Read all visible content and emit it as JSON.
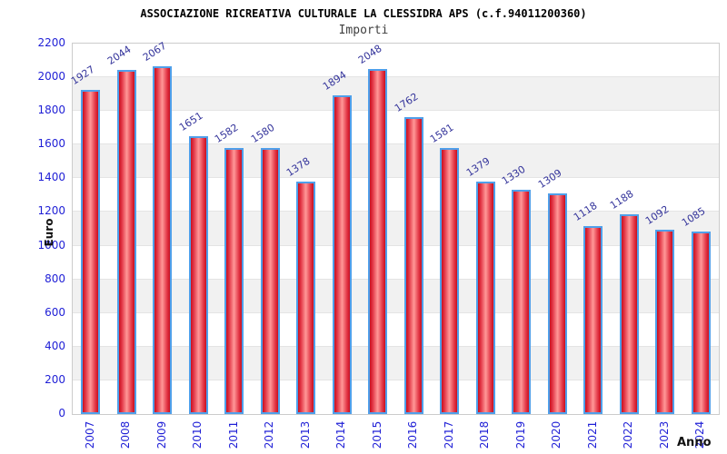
{
  "title": "ASSOCIAZIONE RICREATIVA CULTURALE LA CLESSIDRA APS (c.f.94011200360)",
  "subtitle": "Importi",
  "chart_data": {
    "type": "bar",
    "title": "ASSOCIAZIONE RICREATIVA CULTURALE LA CLESSIDRA APS (c.f.94011200360)",
    "subtitle": "Importi",
    "xlabel": "Anno",
    "ylabel": "Euro",
    "categories": [
      "2007",
      "2008",
      "2009",
      "2010",
      "2011",
      "2012",
      "2013",
      "2014",
      "2015",
      "2016",
      "2017",
      "2018",
      "2019",
      "2020",
      "2021",
      "2022",
      "2023",
      "2024"
    ],
    "values": [
      1927,
      2044,
      2067,
      1651,
      1582,
      1580,
      1378,
      1894,
      2048,
      1762,
      1581,
      1379,
      1330,
      1309,
      1118,
      1188,
      1092,
      1085
    ],
    "ylim": [
      0,
      2200
    ],
    "yticks": [
      0,
      200,
      400,
      600,
      800,
      1000,
      1200,
      1400,
      1600,
      1800,
      2000,
      2200
    ],
    "grid": "alternating horizontal bands every 200, light gridlines",
    "legend": false,
    "bar_labels_rotated": true
  },
  "colors": {
    "bar_edge_red": "#c81020",
    "bar_mid_red": "#ff9898",
    "bar_border_blue": "#4f9fea",
    "axis_tick_blue": "#1f1fd6",
    "value_label_blue": "#34349b",
    "band_gray": "#f1f1f1",
    "gridline_gray": "#e4e4e4",
    "plot_border_gray": "#cccccc",
    "title_black": "#000000",
    "subtitle_gray": "#3f3f3f"
  }
}
